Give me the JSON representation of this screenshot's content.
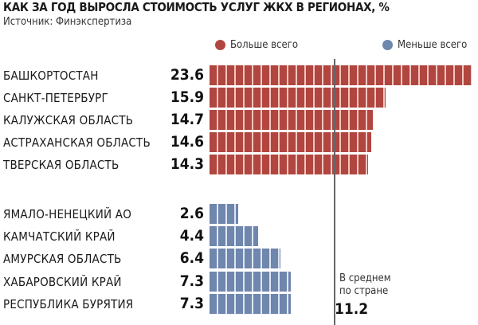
{
  "chart_data": {
    "type": "bar",
    "title": "КАК ЗА ГОД ВЫРОСЛА СТОИМОСТЬ УСЛУГ ЖКХ В РЕГИОНАХ, %",
    "source": "Источник: Финэкспертиза",
    "legend": [
      {
        "label": "Больше всего",
        "color": "#b0463f"
      },
      {
        "label": "Меньше всего",
        "color": "#6f86ad"
      }
    ],
    "groups": [
      {
        "series": "Больше всего",
        "color": "#b0463f",
        "items": [
          {
            "label": "БАШКОРТОСТАН",
            "value": 23.6,
            "display": "23.6"
          },
          {
            "label": "САНКТ-ПЕТЕРБУРГ",
            "value": 15.9,
            "display": "15.9"
          },
          {
            "label": "КАЛУЖСКАЯ ОБЛАСТЬ",
            "value": 14.7,
            "display": "14.7"
          },
          {
            "label": "АСТРАХАНСКАЯ ОБЛАСТЬ",
            "value": 14.6,
            "display": "14.6"
          },
          {
            "label": "ТВЕРСКАЯ ОБЛАСТЬ",
            "value": 14.3,
            "display": "14.3"
          }
        ]
      },
      {
        "series": "Меньше всего",
        "color": "#6f86ad",
        "items": [
          {
            "label": "ЯМАЛО-НЕНЕЦКИЙ АО",
            "value": 2.6,
            "display": "2.6"
          },
          {
            "label": "КАМЧАТСКИЙ КРАЙ",
            "value": 4.4,
            "display": "4.4"
          },
          {
            "label": "АМУРСКАЯ ОБЛАСТЬ",
            "value": 6.4,
            "display": "6.4"
          },
          {
            "label": "ХАБАРОВСКИЙ КРАЙ",
            "value": 7.3,
            "display": "7.3"
          },
          {
            "label": "РЕСПУБЛИКА БУРЯТИЯ",
            "value": 7.3,
            "display": "7.3"
          }
        ]
      }
    ],
    "average": {
      "label": "В среднем по стране",
      "line1": "В среднем",
      "line2": "по стране",
      "value": 11.2,
      "display": "11.2"
    }
  }
}
